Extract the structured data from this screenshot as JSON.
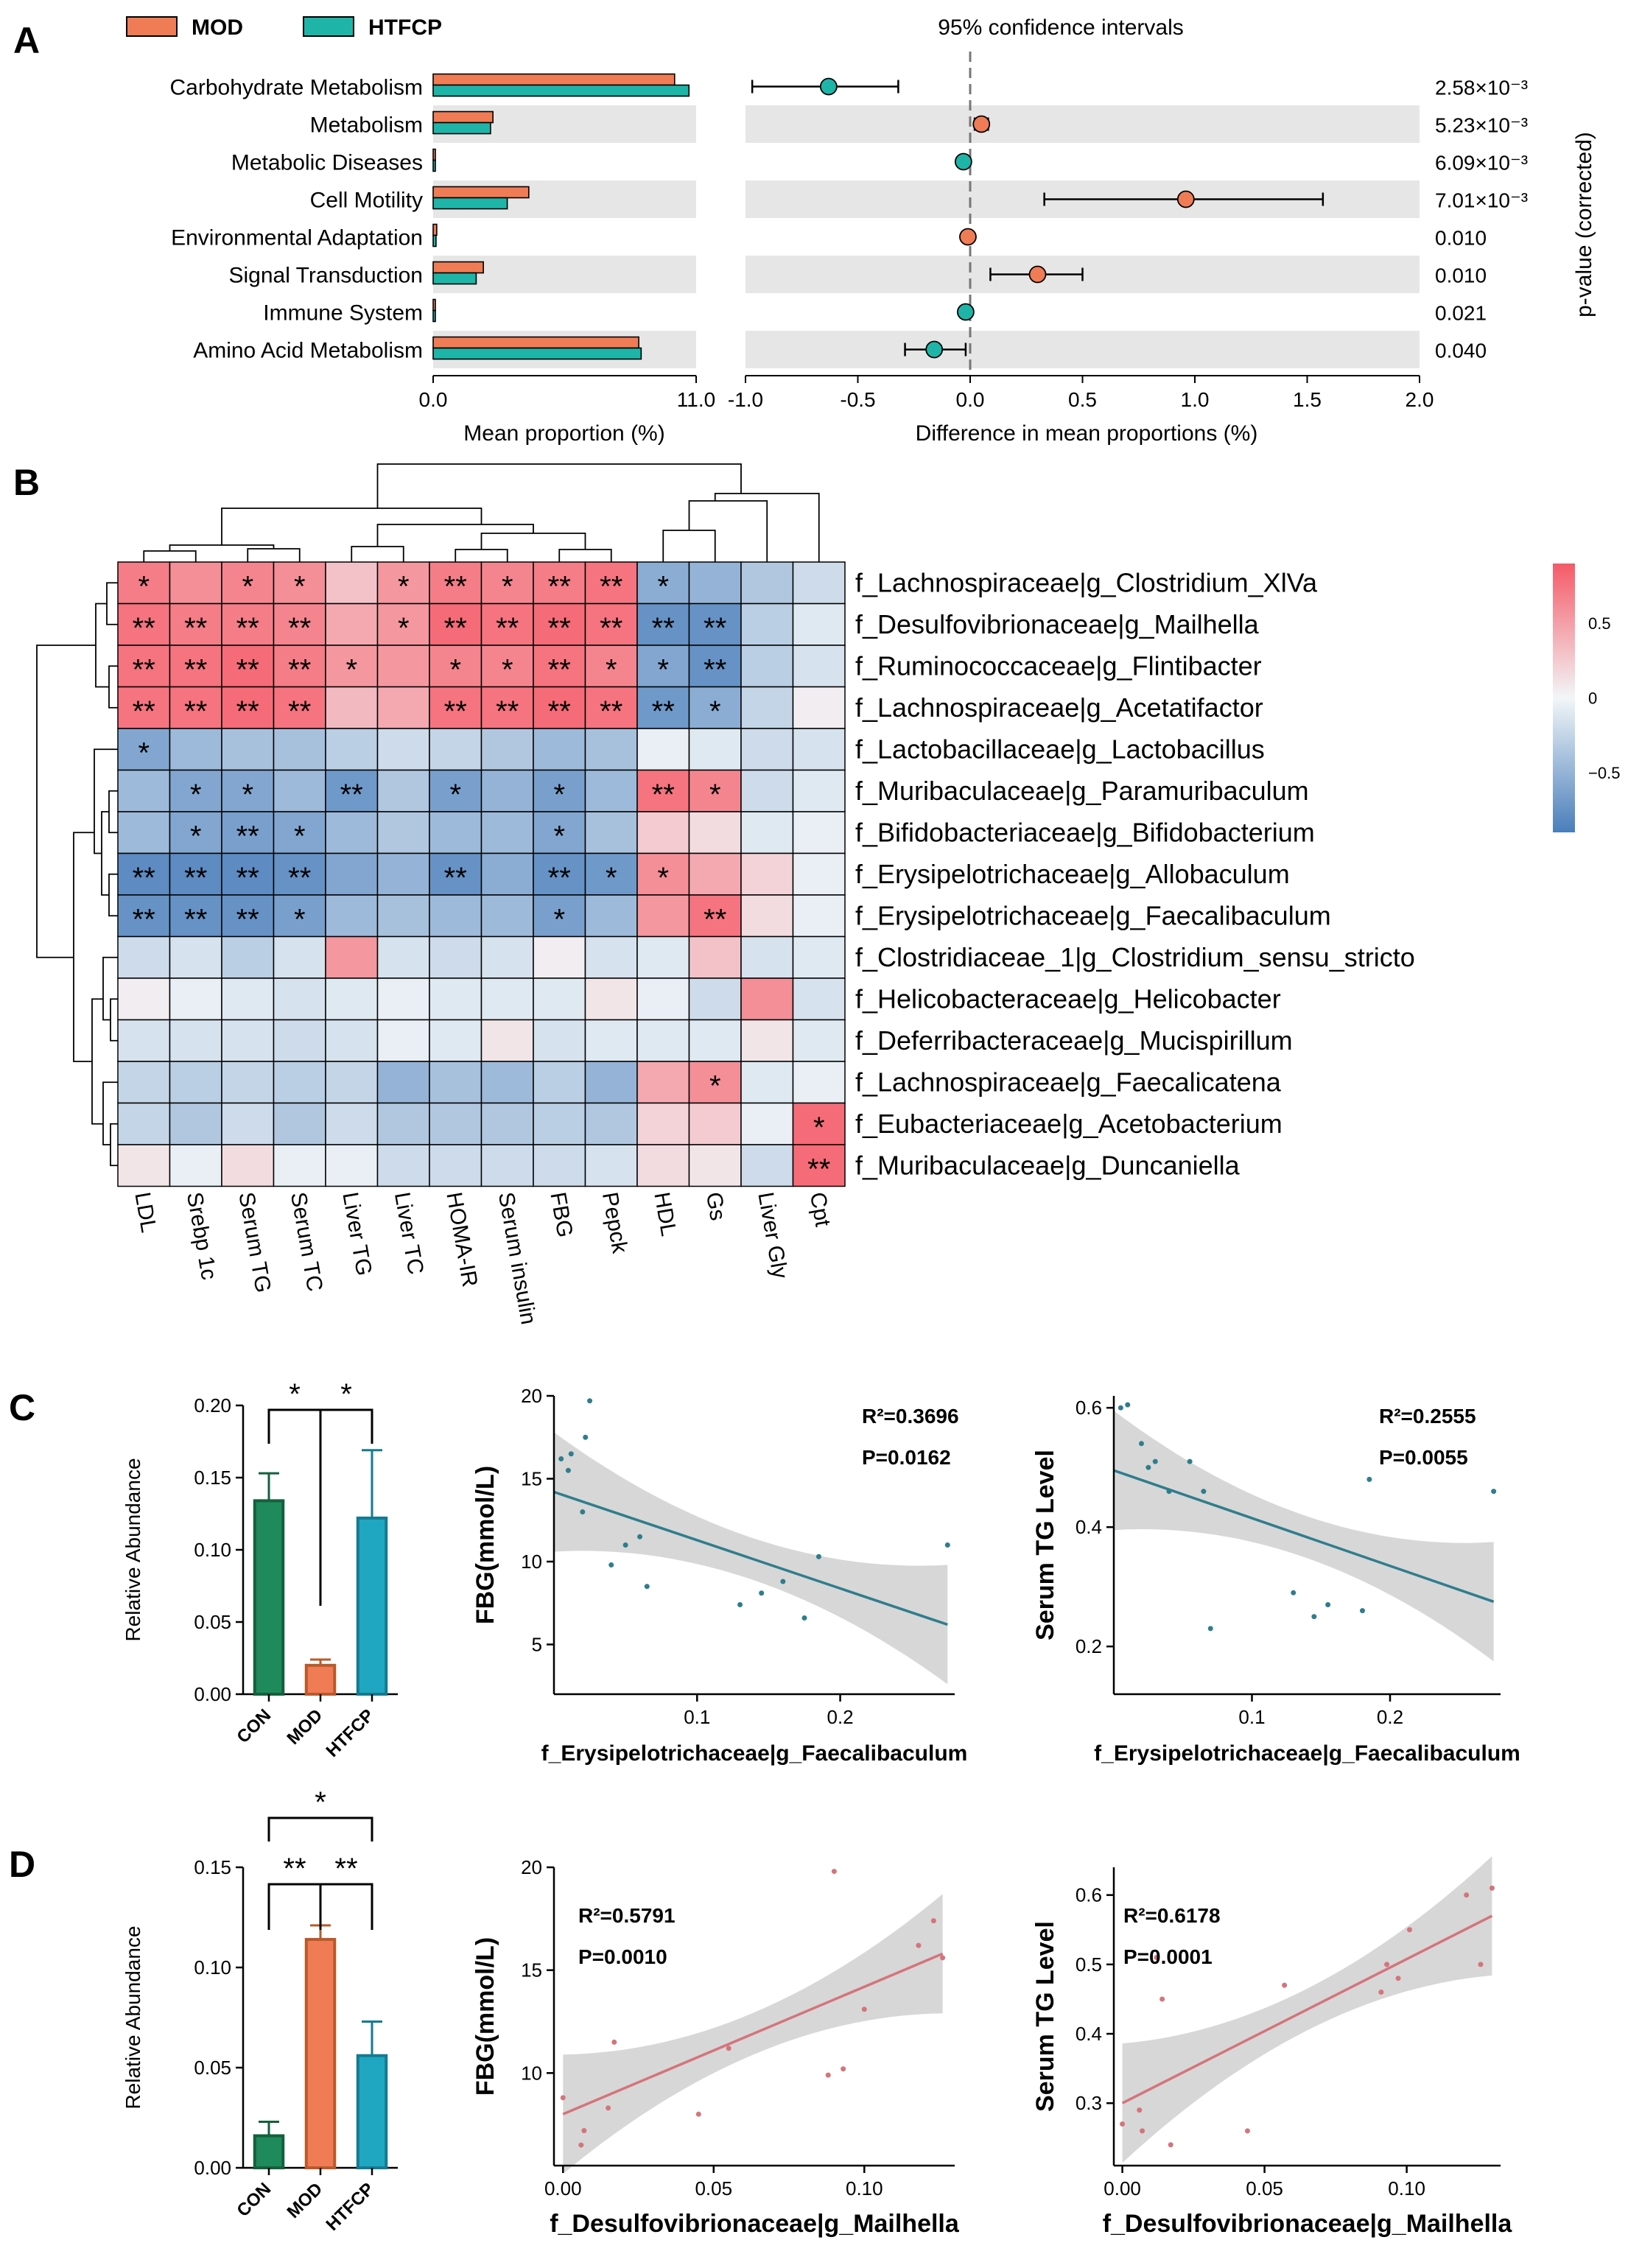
{
  "panel_labels": {
    "a": "A",
    "b": "B",
    "c": "C",
    "d": "D"
  },
  "colors": {
    "mod": "#F07C56",
    "htfcp": "#1EB5A8",
    "con": "#1F8A5B",
    "htfcp_bar": "#1FA7C2",
    "band": "#E6E6E6",
    "pos": "#F55A67",
    "neg": "#4A7EBB",
    "teal_line": "#2F7D8C",
    "pink_line": "#D4747B",
    "ci_band": "#D3D3D3"
  },
  "chart_data": [
    {
      "type": "bar",
      "panel": "A-left",
      "title": "",
      "legend": [
        {
          "name": "MOD",
          "color": "#F07C56"
        },
        {
          "name": "HTFCP",
          "color": "#1EB5A8"
        }
      ],
      "categories": [
        "Carbohydrate Metabolism",
        "Metabolism",
        "Metabolic Diseases",
        "Cell Motility",
        "Environmental Adaptation",
        "Signal Transduction",
        "Immune System",
        "Amino Acid Metabolism"
      ],
      "series": [
        {
          "name": "MOD",
          "values": [
            10.1,
            2.5,
            0.05,
            4.0,
            0.15,
            2.1,
            0.05,
            8.6
          ]
        },
        {
          "name": "HTFCP",
          "values": [
            10.7,
            2.4,
            0.04,
            3.1,
            0.12,
            1.8,
            0.04,
            8.7
          ]
        }
      ],
      "xlabel": "Mean proportion (%)",
      "xticks": [
        "0.0",
        "11.0"
      ],
      "xlim": [
        0,
        11
      ]
    },
    {
      "type": "scatter",
      "panel": "A-right",
      "title": "95% confidence intervals",
      "categories": [
        "Carbohydrate Metabolism",
        "Metabolism",
        "Metabolic Diseases",
        "Cell Motility",
        "Environmental Adaptation",
        "Signal Transduction",
        "Immune System",
        "Amino Acid Metabolism"
      ],
      "values": [
        -0.63,
        0.05,
        -0.03,
        0.96,
        -0.01,
        0.3,
        -0.02,
        -0.16
      ],
      "ci_low": [
        -0.97,
        0.02,
        -0.04,
        0.33,
        -0.02,
        0.09,
        -0.03,
        -0.29
      ],
      "ci_high": [
        -0.32,
        0.08,
        -0.02,
        1.57,
        0.0,
        0.5,
        -0.01,
        -0.02
      ],
      "point_group": [
        "HTFCP",
        "MOD",
        "HTFCP",
        "MOD",
        "MOD",
        "MOD",
        "HTFCP",
        "HTFCP"
      ],
      "xlabel": "Difference in mean proportions (%)",
      "xticks": [
        "-1.0",
        "-0.5",
        "0.0",
        "0.5",
        "1.0",
        "1.5",
        "2.0"
      ],
      "xlim": [
        -1.0,
        2.0
      ],
      "pvalues": [
        "2.58×10⁻³",
        "5.23×10⁻³",
        "6.09×10⁻³",
        "7.01×10⁻³",
        "0.010",
        "0.010",
        "0.021",
        "0.040"
      ],
      "ylabel_right": "p-value (corrected)"
    },
    {
      "type": "heatmap",
      "panel": "B",
      "columns": [
        "LDL",
        "Srebp 1c",
        "Serum TG",
        "Serum TC",
        "Liver TG",
        "Liver TC",
        "HOMA-IR",
        "Serum insulin",
        "FBG",
        "Pepck",
        "HDL",
        "Gs",
        "Liver Gly",
        "Cpt"
      ],
      "rows": [
        "f_Lachnospiraceae|g_Clostridium_XlVa",
        "f_Desulfovibrionaceae|g_Mailhella",
        "f_Ruminococcaceae|g_Flintibacter",
        "f_Lachnospiraceae|g_Acetatifactor",
        "f_Lactobacillaceae|g_Lactobacillus",
        "f_Muribaculaceae|g_Paramuribaculum",
        "f_Bifidobacteriaceae|g_Bifidobacterium",
        "f_Erysipelotrichaceae|g_Allobaculum",
        "f_Erysipelotrichaceae|g_Faecalibaculum",
        "f_Clostridiaceae_1|g_Clostridium_sensu_stricto",
        "f_Helicobacteraceae|g_Helicobacter",
        "f_Deferribacteraceae|g_Mucispirillum",
        "f_Lachnospiraceae|g_Faecalicatena",
        "f_Eubacteriaceae|g_Acetobacterium",
        "f_Muribaculaceae|g_Duncaniella"
      ],
      "values": [
        [
          0.7,
          0.6,
          0.65,
          0.6,
          0.3,
          0.55,
          0.7,
          0.65,
          0.7,
          0.75,
          -0.55,
          -0.5,
          -0.35,
          -0.2
        ],
        [
          0.75,
          0.7,
          0.7,
          0.65,
          0.45,
          0.55,
          0.8,
          0.75,
          0.8,
          0.75,
          -0.75,
          -0.75,
          -0.3,
          -0.1
        ],
        [
          0.75,
          0.75,
          0.8,
          0.7,
          0.55,
          0.55,
          0.65,
          0.65,
          0.75,
          0.65,
          -0.6,
          -0.75,
          -0.3,
          -0.15
        ],
        [
          0.75,
          0.75,
          0.8,
          0.75,
          0.35,
          0.45,
          0.75,
          0.75,
          0.8,
          0.75,
          -0.7,
          -0.55,
          -0.25,
          0.05
        ],
        [
          -0.6,
          -0.45,
          -0.4,
          -0.4,
          -0.3,
          -0.2,
          -0.25,
          -0.35,
          -0.45,
          -0.4,
          -0.05,
          -0.1,
          -0.2,
          -0.15
        ],
        [
          -0.45,
          -0.6,
          -0.6,
          -0.45,
          -0.7,
          -0.35,
          -0.65,
          -0.5,
          -0.65,
          -0.45,
          0.75,
          0.65,
          -0.2,
          -0.1
        ],
        [
          -0.45,
          -0.6,
          -0.65,
          -0.6,
          -0.45,
          -0.35,
          -0.45,
          -0.45,
          -0.6,
          -0.4,
          0.25,
          0.15,
          -0.1,
          -0.05
        ],
        [
          -0.8,
          -0.8,
          -0.8,
          -0.75,
          -0.6,
          -0.5,
          -0.75,
          -0.55,
          -0.75,
          -0.7,
          0.6,
          0.45,
          0.2,
          -0.05
        ],
        [
          -0.75,
          -0.75,
          -0.75,
          -0.65,
          -0.45,
          -0.4,
          -0.45,
          -0.45,
          -0.65,
          -0.45,
          0.55,
          0.75,
          0.15,
          -0.05
        ],
        [
          -0.2,
          -0.15,
          -0.3,
          -0.15,
          0.55,
          -0.15,
          -0.2,
          -0.15,
          0.05,
          -0.15,
          -0.1,
          0.3,
          -0.15,
          -0.1
        ],
        [
          0.05,
          -0.05,
          -0.1,
          -0.15,
          -0.1,
          -0.05,
          -0.1,
          -0.1,
          -0.1,
          0.1,
          -0.05,
          -0.2,
          0.6,
          -0.15
        ],
        [
          -0.15,
          -0.15,
          -0.15,
          -0.2,
          -0.15,
          -0.05,
          -0.1,
          0.1,
          -0.15,
          -0.1,
          -0.1,
          -0.1,
          0.1,
          -0.1
        ],
        [
          -0.25,
          -0.3,
          -0.25,
          -0.3,
          -0.25,
          -0.5,
          -0.4,
          -0.45,
          -0.3,
          -0.5,
          0.45,
          0.6,
          -0.1,
          -0.05
        ],
        [
          -0.25,
          -0.35,
          -0.2,
          -0.35,
          -0.2,
          -0.35,
          -0.35,
          -0.35,
          -0.3,
          -0.35,
          0.2,
          0.25,
          -0.05,
          0.8
        ],
        [
          0.1,
          -0.05,
          0.15,
          -0.05,
          -0.05,
          -0.2,
          -0.2,
          -0.2,
          -0.2,
          -0.15,
          0.15,
          0.1,
          -0.2,
          0.8
        ]
      ],
      "stars": [
        [
          "*",
          "",
          "*",
          "*",
          "",
          "*",
          "**",
          "*",
          "**",
          "**",
          "*",
          "",
          "",
          ""
        ],
        [
          "**",
          "**",
          "**",
          "**",
          "",
          "*",
          "**",
          "**",
          "**",
          "**",
          "**",
          "**",
          "",
          ""
        ],
        [
          "**",
          "**",
          "**",
          "**",
          "*",
          "",
          "*",
          "*",
          "**",
          "*",
          "*",
          "**",
          "",
          ""
        ],
        [
          "**",
          "**",
          "**",
          "**",
          "",
          "",
          "**",
          "**",
          "**",
          "**",
          "**",
          "*",
          "",
          ""
        ],
        [
          "*",
          "",
          "",
          "",
          "",
          "",
          "",
          "",
          "",
          "",
          "",
          "",
          "",
          ""
        ],
        [
          "",
          "*",
          "*",
          "",
          "**",
          "",
          "*",
          "",
          "*",
          "",
          "**",
          "*",
          "",
          ""
        ],
        [
          "",
          "*",
          "**",
          "*",
          "",
          "",
          "",
          "",
          "*",
          "",
          "",
          "",
          "",
          ""
        ],
        [
          "**",
          "**",
          "**",
          "**",
          "",
          "",
          "**",
          "",
          "**",
          "*",
          "*",
          "",
          "",
          ""
        ],
        [
          "**",
          "**",
          "**",
          "*",
          "",
          "",
          "",
          "",
          "*",
          "",
          "",
          "**",
          "",
          ""
        ],
        [
          "",
          "",
          "",
          "",
          "",
          "",
          "",
          "",
          "",
          "",
          "",
          "",
          "",
          ""
        ],
        [
          "",
          "",
          "",
          "",
          "",
          "",
          "",
          "",
          "",
          "",
          "",
          "",
          "",
          ""
        ],
        [
          "",
          "",
          "",
          "",
          "",
          "",
          "",
          "",
          "",
          "",
          "",
          "",
          "",
          ""
        ],
        [
          "",
          "",
          "",
          "",
          "",
          "",
          "",
          "",
          "",
          "",
          "",
          "*",
          "",
          ""
        ],
        [
          "",
          "",
          "",
          "",
          "",
          "",
          "",
          "",
          "",
          "",
          "",
          "",
          "",
          "*"
        ],
        [
          "",
          "",
          "",
          "",
          "",
          "",
          "",
          "",
          "",
          "",
          "",
          "",
          "",
          "**"
        ]
      ],
      "colorbar_ticks": [
        "0.5",
        "0",
        "−0.5"
      ],
      "colorbar_range": [
        -0.9,
        0.9
      ]
    },
    {
      "type": "bar",
      "panel": "C-bar",
      "categories": [
        "CON",
        "MOD",
        "HTFCP"
      ],
      "values": [
        0.134,
        0.02,
        0.122
      ],
      "errors": [
        0.019,
        0.004,
        0.047
      ],
      "ylabel": "Relative Abundance",
      "yticks": [
        "0.00",
        "0.05",
        "0.10",
        "0.15",
        "0.20"
      ],
      "ylim": [
        0,
        0.2
      ],
      "significance": [
        {
          "from": "CON",
          "to": "MOD",
          "label": "*"
        },
        {
          "from": "MOD",
          "to": "HTFCP",
          "label": "*"
        }
      ]
    },
    {
      "type": "scatter",
      "panel": "C-FBG",
      "x": [
        0.005,
        0.01,
        0.02,
        0.025,
        0.04,
        0.05,
        0.06,
        0.065,
        0.13,
        0.145,
        0.16,
        0.175,
        0.185,
        0.275,
        0.012,
        0.022
      ],
      "y": [
        16.2,
        15.5,
        13.0,
        19.7,
        9.8,
        11.0,
        11.5,
        8.5,
        7.4,
        8.1,
        8.8,
        6.6,
        10.3,
        11.0,
        16.5,
        17.5
      ],
      "fit": [
        14.2,
        6.2
      ],
      "fit_x": [
        0.0,
        0.275
      ],
      "xlabel": "f_Erysipelotrichaceae|g_Faecalibaculum",
      "ylabel": "FBG(mmol/L)",
      "xticks": [
        "0.1",
        "0.2"
      ],
      "yticks": [
        "5",
        "10",
        "15",
        "20"
      ],
      "xlim": [
        0.0,
        0.28
      ],
      "ylim": [
        2,
        20
      ],
      "r2": "R²=0.3696",
      "p": "P=0.0162"
    },
    {
      "type": "scatter",
      "panel": "C-TG",
      "x": [
        0.005,
        0.01,
        0.02,
        0.025,
        0.03,
        0.04,
        0.055,
        0.065,
        0.07,
        0.13,
        0.145,
        0.155,
        0.18,
        0.185,
        0.275
      ],
      "y": [
        0.6,
        0.605,
        0.54,
        0.5,
        0.51,
        0.46,
        0.51,
        0.46,
        0.23,
        0.29,
        0.25,
        0.27,
        0.26,
        0.48,
        0.46
      ],
      "fit": [
        0.495,
        0.275
      ],
      "fit_x": [
        0.0,
        0.275
      ],
      "xlabel": "f_Erysipelotrichaceae|g_Faecalibaculum",
      "ylabel": "Serum TG Level",
      "xticks": [
        "0.1",
        "0.2"
      ],
      "yticks": [
        "0.2",
        "0.4",
        "0.6"
      ],
      "xlim": [
        0.0,
        0.28
      ],
      "ylim": [
        0.12,
        0.62
      ],
      "r2": "R²=0.2555",
      "p": "P=0.0055"
    },
    {
      "type": "bar",
      "panel": "D-bar",
      "categories": [
        "CON",
        "MOD",
        "HTFCP"
      ],
      "values": [
        0.016,
        0.114,
        0.056
      ],
      "errors": [
        0.007,
        0.007,
        0.017
      ],
      "ylabel": "Relative Abundance",
      "yticks": [
        "0.00",
        "0.05",
        "0.10",
        "0.15"
      ],
      "ylim": [
        0,
        0.15
      ],
      "significance": [
        {
          "from": "CON",
          "to": "MOD",
          "label": "**"
        },
        {
          "from": "MOD",
          "to": "HTFCP",
          "label": "**"
        },
        {
          "from": "CON",
          "to": "HTFCP",
          "label": "*"
        }
      ]
    },
    {
      "type": "scatter",
      "panel": "D-FBG",
      "x": [
        0.0,
        0.006,
        0.007,
        0.015,
        0.017,
        0.045,
        0.055,
        0.088,
        0.09,
        0.093,
        0.1,
        0.118,
        0.123,
        0.126
      ],
      "y": [
        8.8,
        6.5,
        7.2,
        8.3,
        11.5,
        8.0,
        11.2,
        9.9,
        19.8,
        10.2,
        13.1,
        16.2,
        17.4,
        15.6
      ],
      "fit": [
        8.0,
        15.8
      ],
      "fit_x": [
        0.0,
        0.126
      ],
      "xlabel": "f_Desulfovibrionaceae|g_Mailhella",
      "ylabel": "FBG(mmol/L)",
      "xticks": [
        "0.00",
        "0.05",
        "0.10"
      ],
      "yticks": [
        "10",
        "15",
        "20"
      ],
      "xlim": [
        -0.003,
        0.13
      ],
      "ylim": [
        5.5,
        20
      ],
      "r2": "R²=0.5791",
      "p": "P=0.0010"
    },
    {
      "type": "scatter",
      "panel": "D-TG",
      "x": [
        0.0,
        0.006,
        0.007,
        0.012,
        0.014,
        0.017,
        0.044,
        0.057,
        0.091,
        0.093,
        0.097,
        0.101,
        0.121,
        0.126,
        0.13
      ],
      "y": [
        0.27,
        0.29,
        0.26,
        0.51,
        0.45,
        0.24,
        0.26,
        0.47,
        0.46,
        0.5,
        0.48,
        0.55,
        0.6,
        0.5,
        0.61
      ],
      "fit": [
        0.3,
        0.57
      ],
      "fit_x": [
        0.0,
        0.13
      ],
      "xlabel": "f_Desulfovibrionaceae|g_Mailhella",
      "ylabel": "Serum TG Level",
      "xticks": [
        "0.00",
        "0.05",
        "0.10"
      ],
      "yticks": [
        "0.3",
        "0.4",
        "0.5",
        "0.6"
      ],
      "xlim": [
        -0.003,
        0.133
      ],
      "ylim": [
        0.21,
        0.64
      ],
      "r2": "R²=0.6178",
      "p": "P=0.0001"
    }
  ]
}
